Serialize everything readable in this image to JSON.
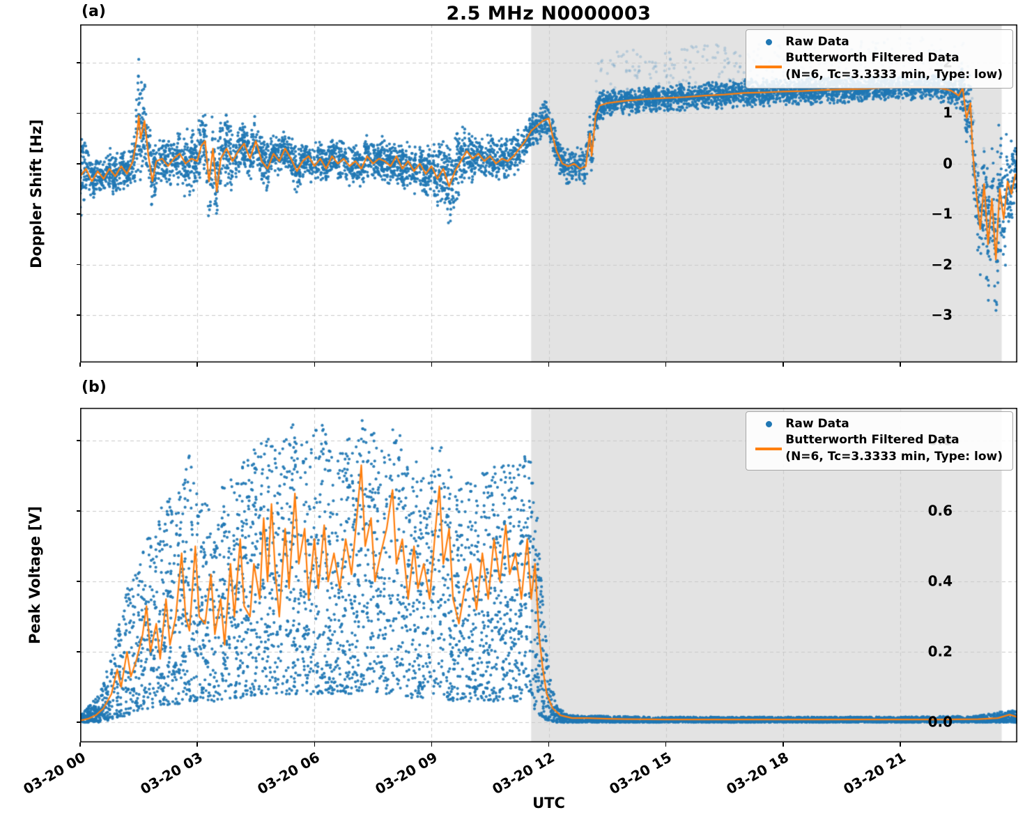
{
  "figure": {
    "window_title": "2.5 MHz N0000003"
  },
  "colors": {
    "raw": "#1f77b4",
    "filtered": "#ff7f0e",
    "shading": "#e3e3e3",
    "grid": "#c9c9c9",
    "spine": "#000000",
    "background": "#ffffff"
  },
  "legend": {
    "raw_label": "Raw Data",
    "filtered_label_line1": "Butterworth Filtered Data",
    "filtered_label_line2": "(N=6, Tc=3.3333 min, Type: low)",
    "position": "upper right"
  },
  "chart_data": [
    {
      "type": "scatter+line",
      "panel_label": "(a)",
      "title": "2.5 MHz N0000003",
      "ylabel": "Doppler Shift [Hz]",
      "xlabel": "",
      "ylim": [
        -3.94,
        2.76
      ],
      "yticks": [
        2,
        1,
        0,
        -1,
        -2,
        -3
      ],
      "ytick_labels": [
        "2",
        "1",
        "0",
        "−1",
        "−2",
        "−3"
      ],
      "xlim_hours": [
        0,
        24
      ],
      "xticks_hours": [
        0,
        3,
        6,
        9,
        12,
        15,
        18,
        21
      ],
      "xtick_labels": [],
      "grid": true,
      "shaded_region_hours": [
        11.55,
        23.6
      ],
      "series": [
        {
          "name": "Raw Data",
          "type": "scatter",
          "color": "#1f77b4"
        },
        {
          "name": "Butterworth Filtered Data (N=6, Tc=3.3333 min, Type: low)",
          "type": "line",
          "color": "#ff7f0e"
        }
      ],
      "filtered": {
        "x_hours": [
          0.0,
          0.15,
          0.3,
          0.45,
          0.6,
          0.75,
          0.9,
          1.05,
          1.2,
          1.35,
          1.45,
          1.5,
          1.55,
          1.65,
          1.75,
          1.85,
          1.95,
          2.1,
          2.25,
          2.4,
          2.55,
          2.7,
          2.85,
          3.0,
          3.1,
          3.2,
          3.3,
          3.4,
          3.5,
          3.6,
          3.75,
          3.9,
          4.05,
          4.2,
          4.35,
          4.5,
          4.65,
          4.8,
          4.95,
          5.1,
          5.25,
          5.4,
          5.55,
          5.7,
          5.85,
          6.0,
          6.15,
          6.3,
          6.45,
          6.6,
          6.75,
          6.9,
          7.05,
          7.2,
          7.35,
          7.5,
          7.65,
          7.8,
          7.95,
          8.1,
          8.25,
          8.4,
          8.55,
          8.7,
          8.85,
          9.0,
          9.15,
          9.3,
          9.45,
          9.6,
          9.75,
          9.9,
          10.05,
          10.2,
          10.35,
          10.5,
          10.65,
          10.8,
          10.95,
          11.1,
          11.25,
          11.4,
          11.55,
          11.7,
          11.85,
          12.0,
          12.1,
          12.2,
          12.35,
          12.5,
          12.65,
          12.8,
          12.95,
          13.05,
          13.1,
          13.2,
          13.3,
          13.5,
          14.0,
          14.5,
          15.0,
          15.5,
          16.0,
          16.5,
          17.0,
          17.5,
          18.0,
          18.5,
          19.0,
          19.5,
          20.0,
          20.5,
          21.0,
          21.5,
          22.0,
          22.3,
          22.5,
          22.6,
          22.7,
          22.8,
          22.85,
          22.95,
          23.05,
          23.15,
          23.25,
          23.35,
          23.45,
          23.55,
          23.65,
          23.75,
          23.85,
          23.95
        ],
        "y": [
          -0.25,
          -0.1,
          -0.35,
          -0.15,
          -0.3,
          -0.1,
          -0.25,
          -0.05,
          -0.2,
          0.05,
          0.5,
          0.95,
          0.5,
          0.85,
          0.15,
          -0.35,
          0.05,
          0.1,
          -0.05,
          0.1,
          0.2,
          0.0,
          0.1,
          0.05,
          0.35,
          0.45,
          -0.35,
          0.3,
          -0.55,
          0.1,
          0.3,
          0.05,
          0.25,
          0.4,
          0.1,
          0.45,
          0.05,
          -0.1,
          0.2,
          0.05,
          0.3,
          0.1,
          -0.15,
          0.05,
          0.15,
          -0.05,
          0.1,
          -0.1,
          0.15,
          0.0,
          0.1,
          -0.05,
          0.05,
          -0.1,
          0.15,
          0.0,
          0.1,
          0.05,
          -0.05,
          0.15,
          -0.1,
          0.05,
          -0.15,
          0.0,
          -0.2,
          -0.05,
          -0.3,
          -0.1,
          -0.45,
          -0.15,
          0.05,
          0.25,
          0.1,
          0.2,
          0.05,
          0.15,
          0.0,
          0.1,
          0.05,
          0.15,
          0.3,
          0.45,
          0.65,
          0.75,
          0.85,
          0.9,
          0.55,
          0.25,
          0.0,
          -0.05,
          0.0,
          -0.1,
          -0.05,
          0.6,
          0.15,
          0.95,
          1.15,
          1.2,
          1.25,
          1.28,
          1.3,
          1.32,
          1.35,
          1.37,
          1.4,
          1.41,
          1.43,
          1.44,
          1.46,
          1.47,
          1.48,
          1.5,
          1.51,
          1.52,
          1.5,
          1.45,
          1.35,
          1.5,
          0.9,
          1.2,
          0.3,
          -0.6,
          -1.3,
          -0.4,
          -1.6,
          -0.7,
          -1.9,
          -0.5,
          -1.1,
          -0.35,
          -0.6,
          -0.2
        ]
      },
      "raw_scatter_model": {
        "n_points": 6500,
        "spread_x_hours": [
          0,
          0.15,
          0.3,
          1.3,
          1.5,
          1.7,
          2.0,
          3.0,
          3.6,
          4.0,
          4.5,
          5.0,
          6.0,
          7.0,
          8.0,
          9.0,
          9.5,
          10.0,
          11.0,
          11.7,
          12.3,
          13.0,
          13.5,
          15.0,
          17.0,
          19.0,
          21.0,
          22.4,
          22.9,
          23.2,
          23.5,
          23.8,
          24.0
        ],
        "spread_halfwidth": [
          1.3,
          0.55,
          0.42,
          0.45,
          1.3,
          1.0,
          0.45,
          0.8,
          0.9,
          0.6,
          0.6,
          0.5,
          0.45,
          0.45,
          0.5,
          0.55,
          0.9,
          0.5,
          0.45,
          0.4,
          0.35,
          0.45,
          0.3,
          0.28,
          0.3,
          0.3,
          0.28,
          0.3,
          0.8,
          1.4,
          1.7,
          1.2,
          0.6
        ]
      },
      "halo": {
        "x_hours": [
          13.2,
          23.3
        ],
        "y_offset": [
          0.2,
          1.0
        ],
        "n_points": 320,
        "alpha": 0.22
      }
    },
    {
      "type": "scatter+line",
      "panel_label": "(b)",
      "title": "",
      "ylabel": "Peak Voltage [V]",
      "xlabel": "UTC",
      "ylim": [
        -0.057,
        0.893
      ],
      "yticks": [
        0.8,
        0.6,
        0.4,
        0.2,
        0.0
      ],
      "ytick_labels": [
        "0.8",
        "0.6",
        "0.4",
        "0.2",
        "0.0"
      ],
      "xlim_hours": [
        0,
        24
      ],
      "xticks_hours": [
        0,
        3,
        6,
        9,
        12,
        15,
        18,
        21
      ],
      "xtick_labels": [
        "03-20 00",
        "03-20 03",
        "03-20 06",
        "03-20 09",
        "03-20 12",
        "03-20 15",
        "03-20 18",
        "03-20 21"
      ],
      "grid": true,
      "shaded_region_hours": [
        11.55,
        23.6
      ],
      "series": [
        {
          "name": "Raw Data",
          "type": "scatter",
          "color": "#1f77b4"
        },
        {
          "name": "Butterworth Filtered Data (N=6, Tc=3.3333 min, Type: low)",
          "type": "line",
          "color": "#ff7f0e"
        }
      ],
      "filtered": {
        "x_hours": [
          0.0,
          0.2,
          0.4,
          0.6,
          0.8,
          0.95,
          1.05,
          1.2,
          1.3,
          1.45,
          1.6,
          1.7,
          1.8,
          1.95,
          2.05,
          2.2,
          2.3,
          2.45,
          2.6,
          2.7,
          2.8,
          2.95,
          3.05,
          3.2,
          3.35,
          3.45,
          3.6,
          3.7,
          3.85,
          3.95,
          4.1,
          4.2,
          4.35,
          4.45,
          4.6,
          4.7,
          4.8,
          4.9,
          5.0,
          5.1,
          5.25,
          5.35,
          5.5,
          5.6,
          5.75,
          5.85,
          6.0,
          6.1,
          6.25,
          6.35,
          6.5,
          6.65,
          6.8,
          6.95,
          7.1,
          7.2,
          7.3,
          7.45,
          7.55,
          7.7,
          7.85,
          8.0,
          8.1,
          8.25,
          8.4,
          8.55,
          8.65,
          8.8,
          8.95,
          9.1,
          9.2,
          9.3,
          9.45,
          9.55,
          9.7,
          9.85,
          10.0,
          10.15,
          10.3,
          10.45,
          10.6,
          10.75,
          10.9,
          11.0,
          11.15,
          11.3,
          11.45,
          11.55,
          11.65,
          11.75,
          11.85,
          11.95,
          12.1,
          12.3,
          12.6,
          13.0,
          13.5,
          14.0,
          15.0,
          16.0,
          17.0,
          18.0,
          19.0,
          20.0,
          21.0,
          22.0,
          23.0,
          23.5,
          23.8,
          24.0
        ],
        "y": [
          0.005,
          0.01,
          0.02,
          0.04,
          0.08,
          0.15,
          0.1,
          0.2,
          0.13,
          0.18,
          0.25,
          0.33,
          0.2,
          0.28,
          0.18,
          0.35,
          0.22,
          0.3,
          0.48,
          0.3,
          0.26,
          0.5,
          0.3,
          0.28,
          0.42,
          0.25,
          0.35,
          0.22,
          0.45,
          0.3,
          0.52,
          0.33,
          0.3,
          0.45,
          0.35,
          0.58,
          0.4,
          0.62,
          0.42,
          0.3,
          0.55,
          0.38,
          0.65,
          0.45,
          0.55,
          0.35,
          0.52,
          0.38,
          0.56,
          0.4,
          0.48,
          0.38,
          0.52,
          0.42,
          0.6,
          0.73,
          0.5,
          0.58,
          0.4,
          0.48,
          0.55,
          0.66,
          0.45,
          0.52,
          0.35,
          0.5,
          0.38,
          0.45,
          0.35,
          0.55,
          0.67,
          0.45,
          0.55,
          0.35,
          0.28,
          0.38,
          0.45,
          0.32,
          0.48,
          0.35,
          0.52,
          0.4,
          0.56,
          0.42,
          0.48,
          0.35,
          0.52,
          0.35,
          0.45,
          0.25,
          0.15,
          0.08,
          0.04,
          0.02,
          0.012,
          0.012,
          0.01,
          0.009,
          0.008,
          0.008,
          0.008,
          0.008,
          0.008,
          0.008,
          0.008,
          0.008,
          0.009,
          0.012,
          0.022,
          0.015
        ]
      },
      "raw_scatter_model": {
        "n_points": 6500,
        "env_x_hours": [
          0,
          0.5,
          0.9,
          1.2,
          1.5,
          1.8,
          2.1,
          2.5,
          2.8,
          3.1,
          3.5,
          3.9,
          4.3,
          4.7,
          5.0,
          5.4,
          5.8,
          6.2,
          6.6,
          7.0,
          7.3,
          7.7,
          8.0,
          8.4,
          8.8,
          9.2,
          9.6,
          10.0,
          10.4,
          10.8,
          11.2,
          11.5,
          11.7,
          11.85,
          12.0,
          12.2,
          12.5,
          13.0,
          15.0,
          18.0,
          21.0,
          23.0,
          23.8,
          24.0
        ],
        "env_ymin": [
          0,
          0,
          0.01,
          0.02,
          0.03,
          0.04,
          0.05,
          0.05,
          0.06,
          0.06,
          0.06,
          0.07,
          0.07,
          0.08,
          0.08,
          0.08,
          0.08,
          0.08,
          0.08,
          0.08,
          0.09,
          0.08,
          0.08,
          0.07,
          0.07,
          0.07,
          0.06,
          0.06,
          0.06,
          0.06,
          0.06,
          0.05,
          0.03,
          0.01,
          0.005,
          0,
          0,
          0,
          0,
          0,
          0,
          0,
          0,
          0
        ],
        "env_ymax": [
          0.02,
          0.08,
          0.25,
          0.38,
          0.45,
          0.55,
          0.62,
          0.68,
          0.76,
          0.62,
          0.65,
          0.72,
          0.75,
          0.82,
          0.78,
          0.86,
          0.8,
          0.86,
          0.78,
          0.84,
          0.87,
          0.8,
          0.85,
          0.78,
          0.72,
          0.83,
          0.7,
          0.68,
          0.72,
          0.75,
          0.72,
          0.78,
          0.6,
          0.35,
          0.15,
          0.05,
          0.02,
          0.018,
          0.015,
          0.015,
          0.015,
          0.018,
          0.035,
          0.03
        ]
      }
    }
  ]
}
